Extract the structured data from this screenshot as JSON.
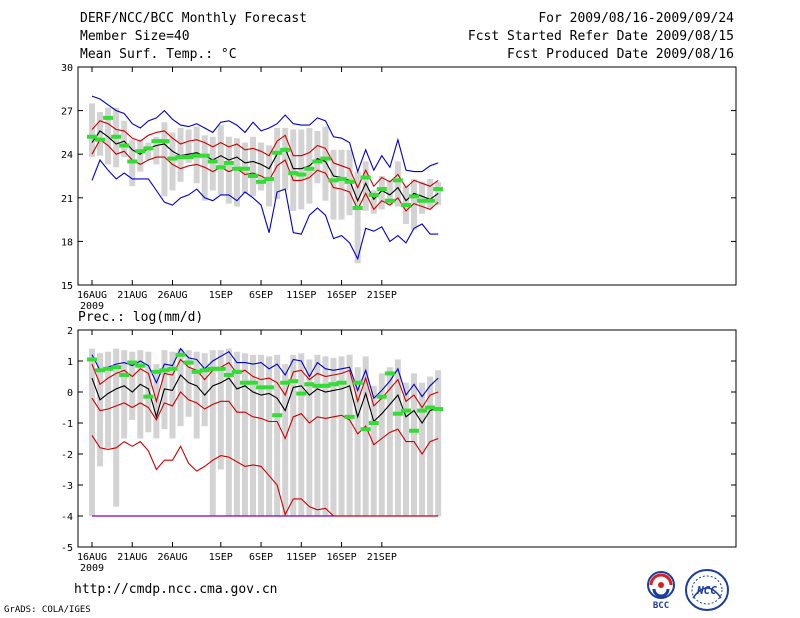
{
  "header": {
    "title": "DERF/NCC/BCC Monthly Forecast",
    "member_size": "Member Size=40",
    "variable": "Mean Surf. Temp.: °C",
    "period": "For 2009/08/16-2009/09/24",
    "fcst_started": "Fcst Started Refer Date 2009/08/15",
    "fcst_produced": "Fcst Produced Date 2009/08/16"
  },
  "footer": {
    "url": "http://cmdp.ncc.cma.gov.cn",
    "grads_credit": "GrADS: COLA/IGES",
    "logo_left_text": "BCC",
    "logo_right_text": "NCC"
  },
  "colors": {
    "box": "#d3d3d3",
    "mean": "#000000",
    "spread": "#cc0000",
    "envelope": "#0000cc",
    "analog": "#33dd33",
    "floor": "#8800aa"
  },
  "chart_data": [
    {
      "type": "line",
      "title": "Mean Surf. Temp.: °C",
      "xlabel": "",
      "ylabel": "°C",
      "ylim": [
        15,
        30
      ],
      "yticks": [
        "15",
        "18",
        "21",
        "24",
        "27",
        "30"
      ],
      "x_start_day": 16,
      "x_ticks": [
        {
          "day": 16,
          "label": "16AUG",
          "sublabel": "2009"
        },
        {
          "day": 21,
          "label": "21AUG"
        },
        {
          "day": 26,
          "label": "26AUG"
        },
        {
          "day": 32,
          "label": "1SEP"
        },
        {
          "day": 37,
          "label": "6SEP"
        },
        {
          "day": 42,
          "label": "11SEP"
        },
        {
          "day": 47,
          "label": "16SEP"
        },
        {
          "day": 52,
          "label": "21SEP"
        }
      ],
      "series": [
        {
          "name": "ensemble-mean",
          "values": [
            24.8,
            25.6,
            25.2,
            24.7,
            24.9,
            24.3,
            24.0,
            24.4,
            24.6,
            24.7,
            24.2,
            23.9,
            24.0,
            24.1,
            23.9,
            23.6,
            23.9,
            23.6,
            23.8,
            23.4,
            23.5,
            23.3,
            23.0,
            24.0,
            24.4,
            23.0,
            23.0,
            23.2,
            23.7,
            23.5,
            22.5,
            22.4,
            22.2,
            20.8,
            22.0,
            20.9,
            21.5,
            21.2,
            21.7,
            20.8,
            21.3,
            21.1,
            20.9,
            21.3
          ]
        },
        {
          "name": "spread-upper",
          "values": [
            25.7,
            26.3,
            26.1,
            25.7,
            25.6,
            25.1,
            24.9,
            25.3,
            25.5,
            25.6,
            25.1,
            24.7,
            24.9,
            25.0,
            24.8,
            24.5,
            24.8,
            24.5,
            24.7,
            24.3,
            24.4,
            24.2,
            23.9,
            24.9,
            25.3,
            23.9,
            23.9,
            24.1,
            24.6,
            24.4,
            23.4,
            23.2,
            23.0,
            21.7,
            22.9,
            21.8,
            22.4,
            22.1,
            22.6,
            21.7,
            22.2,
            22.0,
            21.8,
            22.2
          ]
        },
        {
          "name": "spread-lower",
          "values": [
            24.0,
            25.0,
            24.6,
            24.0,
            24.2,
            23.6,
            23.3,
            23.6,
            23.8,
            23.8,
            23.3,
            23.0,
            23.2,
            23.3,
            23.1,
            22.8,
            23.1,
            22.8,
            23.0,
            22.6,
            22.7,
            22.5,
            22.2,
            23.2,
            23.6,
            22.2,
            22.2,
            22.4,
            22.9,
            22.7,
            21.7,
            21.6,
            21.4,
            20.2,
            21.3,
            20.2,
            20.8,
            20.5,
            21.0,
            20.1,
            20.6,
            20.4,
            20.2,
            20.7
          ]
        },
        {
          "name": "envelope-upper",
          "values": [
            28.0,
            27.8,
            27.4,
            27.0,
            26.8,
            26.1,
            25.8,
            26.3,
            26.5,
            27.0,
            26.4,
            26.0,
            25.9,
            26.1,
            25.8,
            25.5,
            26.2,
            26.3,
            26.0,
            25.5,
            26.2,
            25.6,
            25.8,
            26.1,
            26.7,
            26.1,
            26.0,
            26.0,
            26.5,
            26.3,
            25.2,
            25.1,
            24.8,
            22.8,
            24.3,
            22.9,
            23.9,
            23.1,
            25.0,
            22.9,
            22.8,
            22.8,
            23.2,
            23.4
          ]
        },
        {
          "name": "envelope-lower",
          "values": [
            22.2,
            23.6,
            22.9,
            22.3,
            22.7,
            22.3,
            22.3,
            22.3,
            21.5,
            20.7,
            20.5,
            21.0,
            21.2,
            21.6,
            21.0,
            20.8,
            21.2,
            21.2,
            20.8,
            21.4,
            21.0,
            20.5,
            18.6,
            21.4,
            21.6,
            18.6,
            18.5,
            19.8,
            20.3,
            19.8,
            18.2,
            18.4,
            17.9,
            16.8,
            18.9,
            18.7,
            19.0,
            18.0,
            18.4,
            17.9,
            18.9,
            19.2,
            18.5,
            18.5
          ]
        }
      ],
      "boxes": {
        "upper": [
          27.5,
          26.9,
          27.2,
          27.2,
          26.3,
          25.0,
          25.0,
          24.8,
          25.2,
          26.2,
          25.5,
          25.8,
          25.7,
          25.9,
          25.3,
          25.2,
          26.0,
          25.2,
          25.1,
          24.8,
          25.2,
          24.8,
          24.6,
          25.8,
          25.8,
          25.7,
          25.7,
          25.8,
          25.6,
          25.9,
          24.3,
          24.3,
          24.3,
          22.8,
          23.5,
          21.5,
          22.5,
          22.2,
          23.5,
          21.8,
          22.3,
          22.1,
          22.3,
          22.1
        ],
        "lower": [
          23.8,
          23.9,
          23.3,
          23.1,
          23.8,
          21.8,
          22.8,
          23.6,
          23.3,
          21.1,
          21.5,
          22.1,
          23.4,
          22.0,
          20.8,
          21.5,
          21.2,
          20.6,
          20.4,
          21.3,
          21.1,
          21.5,
          20.4,
          20.9,
          21.5,
          20.1,
          20.2,
          20.6,
          22.0,
          20.8,
          19.5,
          19.5,
          19.8,
          16.5,
          20.1,
          19.9,
          20.2,
          20.5,
          20.4,
          19.2,
          18.8,
          19.9,
          20.2,
          20.5
        ]
      },
      "analog": [
        25.2,
        25.0,
        26.5,
        25.2,
        24.6,
        23.5,
        24.2,
        24.4,
        24.9,
        24.9,
        23.7,
        23.8,
        23.8,
        23.9,
        23.9,
        23.5,
        23.1,
        23.4,
        23.0,
        23.0,
        22.5,
        22.1,
        22.3,
        24.1,
        24.3,
        22.7,
        22.6,
        23.0,
        23.5,
        23.7,
        22.2,
        22.3,
        22.1,
        20.3,
        22.4,
        21.2,
        21.6,
        20.8,
        22.2,
        20.5,
        21.1,
        20.8,
        20.8,
        21.6
      ]
    },
    {
      "type": "line",
      "title": "Prec.: log(mm/d)",
      "xlabel": "",
      "ylabel": "log(mm/d)",
      "ylim": [
        -5,
        2
      ],
      "yticks": [
        "-5",
        "-4",
        "-3",
        "-2",
        "-1",
        "0",
        "1",
        "2"
      ],
      "x_start_day": 16,
      "x_ticks": [
        {
          "day": 16,
          "label": "16AUG",
          "sublabel": "2009"
        },
        {
          "day": 21,
          "label": "21AUG"
        },
        {
          "day": 26,
          "label": "26AUG"
        },
        {
          "day": 32,
          "label": "1SEP"
        },
        {
          "day": 37,
          "label": "6SEP"
        },
        {
          "day": 42,
          "label": "11SEP"
        },
        {
          "day": 47,
          "label": "16SEP"
        },
        {
          "day": 52,
          "label": "21SEP"
        }
      ],
      "floor": -4.0,
      "series": [
        {
          "name": "ensemble-mean",
          "values": [
            0.45,
            -0.25,
            -0.05,
            0.1,
            0.2,
            0.0,
            0.25,
            0.1,
            -0.8,
            0.1,
            0.05,
            0.55,
            0.3,
            0.2,
            -0.1,
            0.2,
            0.3,
            0.45,
            0.1,
            0.2,
            0.0,
            -0.1,
            -0.05,
            -0.2,
            -0.6,
            0.15,
            0.2,
            -0.1,
            0.1,
            0.0,
            0.05,
            0.1,
            0.2,
            -0.8,
            -0.05,
            -0.95,
            -0.7,
            -0.4,
            -0.1,
            -0.8,
            -0.6,
            -1.0,
            -0.6,
            -0.5
          ]
        },
        {
          "name": "spread-upper",
          "values": [
            0.9,
            0.25,
            0.45,
            0.6,
            0.7,
            0.5,
            0.75,
            0.6,
            -0.3,
            0.6,
            0.55,
            1.05,
            0.8,
            0.7,
            0.4,
            0.7,
            0.8,
            0.95,
            0.6,
            0.7,
            0.5,
            0.4,
            0.45,
            0.3,
            -0.1,
            0.65,
            0.7,
            0.4,
            0.6,
            0.5,
            0.55,
            0.6,
            0.7,
            -0.3,
            0.45,
            -0.45,
            -0.2,
            0.1,
            0.4,
            -0.3,
            -0.1,
            -0.5,
            -0.1,
            0.0
          ]
        },
        {
          "name": "spread-lower",
          "values": [
            -0.2,
            -0.6,
            -0.55,
            -0.45,
            -0.35,
            -0.5,
            -0.35,
            -0.5,
            -0.9,
            -0.35,
            -0.45,
            0.0,
            -0.25,
            -0.35,
            -0.55,
            -0.4,
            -0.3,
            -0.3,
            -0.65,
            -0.65,
            -0.8,
            -0.85,
            -0.95,
            -0.95,
            -1.5,
            -0.8,
            -0.7,
            -1.0,
            -0.8,
            -0.85,
            -0.8,
            -0.75,
            -0.9,
            -1.35,
            -1.1,
            -1.7,
            -1.5,
            -1.3,
            -1.2,
            -1.6,
            -1.6,
            -2.0,
            -1.6,
            -1.5
          ]
        },
        {
          "name": "spread-lowest",
          "values": [
            -1.4,
            -1.8,
            -1.85,
            -1.8,
            -1.6,
            -1.75,
            -1.6,
            -1.9,
            -2.5,
            -2.2,
            -2.2,
            -1.75,
            -2.3,
            -2.55,
            -2.4,
            -2.2,
            -2.05,
            -2.1,
            -2.25,
            -2.4,
            -2.35,
            -2.4,
            -2.7,
            -3.0,
            -3.95,
            -3.45,
            -3.45,
            -3.7,
            -3.8,
            -3.75,
            -4.0,
            -4.0,
            -4.0,
            -4.0,
            -4.0,
            -4.0,
            -4.0,
            -4.0,
            -4.0,
            -4.0,
            -4.0,
            -4.0,
            -4.0,
            -4.0
          ]
        },
        {
          "name": "envelope-upper",
          "values": [
            1.2,
            0.7,
            0.8,
            0.9,
            0.95,
            0.85,
            1.0,
            0.85,
            0.3,
            0.9,
            0.85,
            1.4,
            1.1,
            1.05,
            0.75,
            1.0,
            1.15,
            1.3,
            0.95,
            0.95,
            0.9,
            0.95,
            0.75,
            0.9,
            0.55,
            1.05,
            1.0,
            0.5,
            0.95,
            0.75,
            0.7,
            0.75,
            0.8,
            0.05,
            0.7,
            -0.2,
            0.05,
            0.35,
            0.75,
            -0.1,
            0.25,
            -0.15,
            0.2,
            0.45
          ]
        }
      ],
      "boxes": {
        "upper": [
          1.4,
          1.25,
          1.3,
          1.4,
          1.35,
          1.3,
          1.35,
          1.3,
          0.9,
          1.35,
          1.3,
          1.4,
          1.35,
          1.3,
          1.25,
          1.35,
          1.35,
          1.4,
          1.3,
          1.25,
          1.2,
          1.2,
          1.15,
          1.2,
          0.9,
          1.2,
          1.25,
          1.05,
          1.2,
          1.15,
          1.1,
          1.15,
          1.2,
          0.8,
          1.15,
          0.2,
          0.6,
          0.8,
          1.05,
          0.3,
          0.6,
          0.3,
          0.5,
          0.7
        ],
        "lower": [
          -4.0,
          -2.4,
          -1.8,
          -3.7,
          -1.5,
          -0.9,
          -1.5,
          -1.3,
          -1.5,
          -1.2,
          -1.5,
          -1.1,
          -0.8,
          -1.5,
          -1.1,
          -4.0,
          -2.5,
          -4.0,
          -4.0,
          -4.0,
          -4.0,
          -4.0,
          -4.0,
          -4.0,
          -4.0,
          -4.0,
          -4.0,
          -4.0,
          -4.0,
          -4.0,
          -4.0,
          -4.0,
          -4.0,
          -4.0,
          -4.0,
          -4.0,
          -4.0,
          -4.0,
          -4.0,
          -4.0,
          -4.0,
          -4.0,
          -4.0,
          -4.0
        ]
      },
      "analog": [
        1.05,
        0.7,
        0.75,
        0.8,
        0.55,
        0.95,
        0.85,
        -0.15,
        0.65,
        0.7,
        0.75,
        1.2,
        0.95,
        0.65,
        0.7,
        0.75,
        0.75,
        0.55,
        0.65,
        0.3,
        0.3,
        0.15,
        0.15,
        -0.75,
        0.3,
        0.35,
        -0.05,
        0.25,
        0.2,
        0.2,
        0.25,
        0.3,
        -0.8,
        0.3,
        -1.2,
        -1.0,
        -0.15,
        0.6,
        -0.7,
        -0.6,
        -1.25,
        -0.6,
        -0.5,
        -0.55
      ]
    }
  ]
}
